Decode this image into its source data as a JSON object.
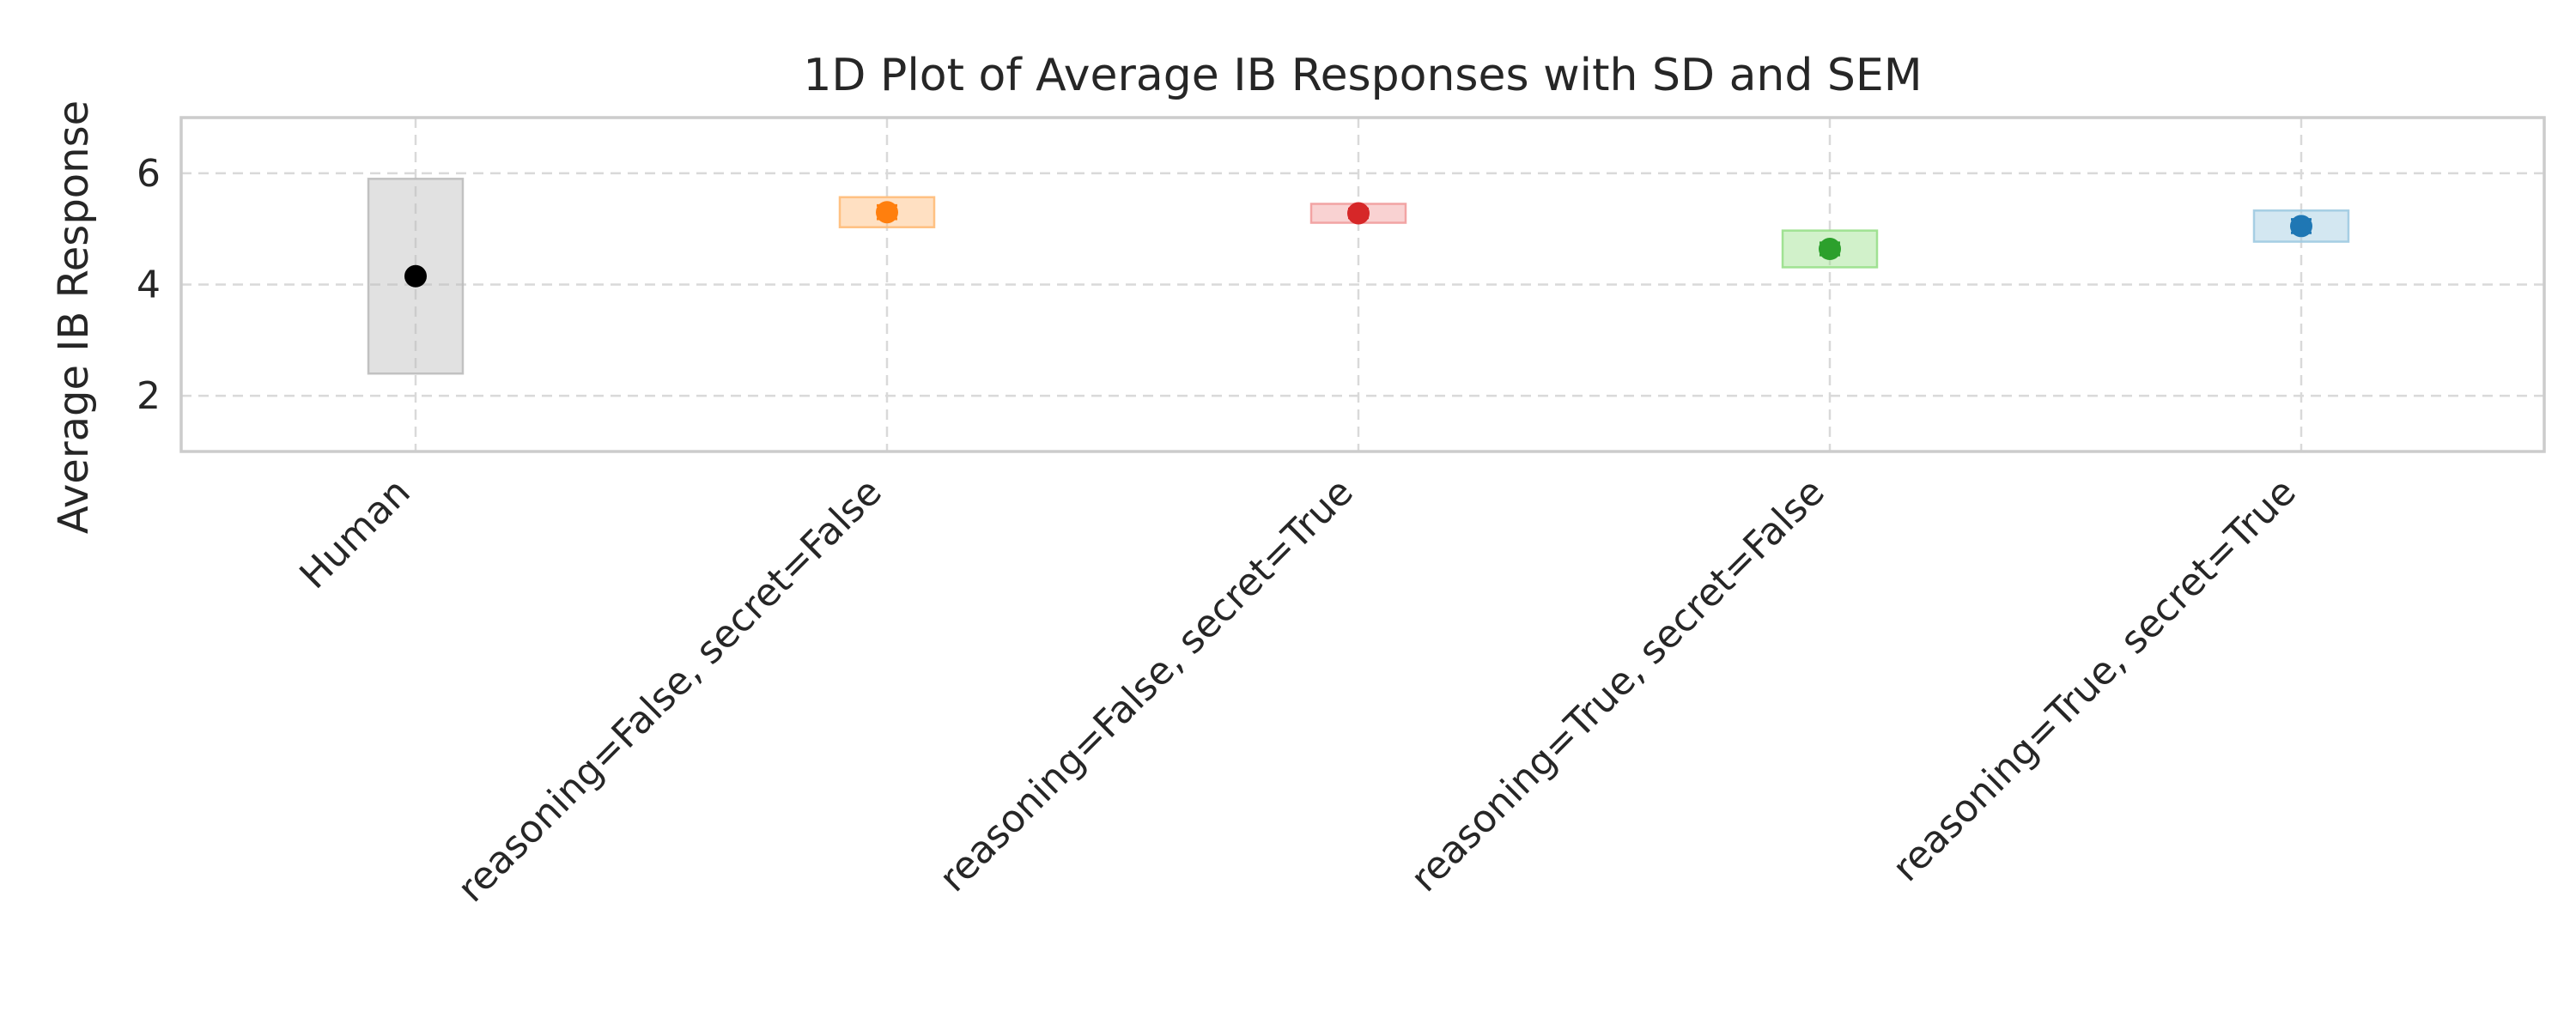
{
  "chart_data": {
    "type": "scatter",
    "title": "1D Plot of Average IB Responses with SD and SEM",
    "xlabel": "",
    "ylabel": "Average IB Response",
    "ylim": [
      1,
      7
    ],
    "yticks": [
      2,
      4,
      6
    ],
    "grid": true,
    "categories": [
      "Human",
      "reasoning=False, secret=False",
      "reasoning=False, secret=True",
      "reasoning=True, secret=False",
      "reasoning=True, secret=True"
    ],
    "series": [
      {
        "category": "Human",
        "mean": 4.15,
        "sd": 1.75,
        "sem": 0.05,
        "color": "#000000",
        "band_color": "#bdbdbd"
      },
      {
        "category": "reasoning=False, secret=False",
        "mean": 5.3,
        "sd": 0.27,
        "sem": 0.12,
        "color": "#ff7f0e",
        "band_color": "#ffbb78"
      },
      {
        "category": "reasoning=False, secret=True",
        "mean": 5.28,
        "sd": 0.17,
        "sem": 0.08,
        "color": "#d62728",
        "band_color": "#f19c9c"
      },
      {
        "category": "reasoning=True, secret=False",
        "mean": 4.64,
        "sd": 0.33,
        "sem": 0.11,
        "color": "#2ca02c",
        "band_color": "#98df8a"
      },
      {
        "category": "reasoning=True, secret=True",
        "mean": 5.05,
        "sd": 0.28,
        "sem": 0.12,
        "color": "#1f77b4",
        "band_color": "#9ecae1"
      }
    ]
  }
}
